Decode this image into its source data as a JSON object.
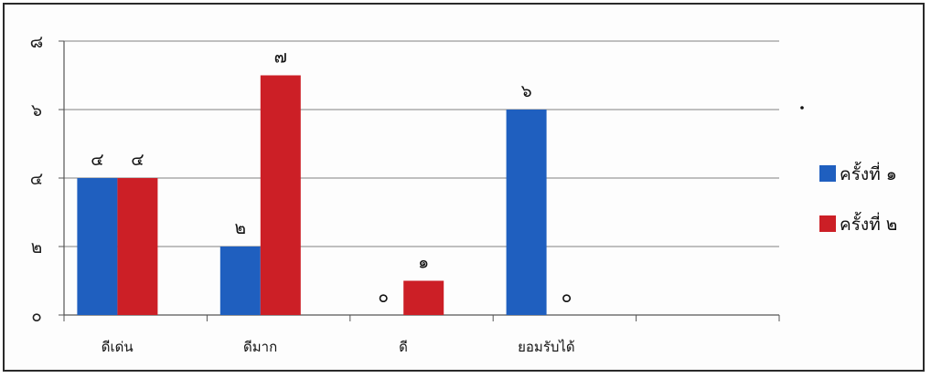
{
  "chart_data": {
    "type": "bar",
    "categories": [
      "ดีเด่น",
      "ดีมาก",
      "ดี",
      "ยอมรับได้",
      ""
    ],
    "series": [
      {
        "name": "ครั้งที่ ๑",
        "values": [
          4,
          2,
          0,
          6,
          null
        ],
        "color": "#1f5fbf"
      },
      {
        "name": "ครั้งที่ ๒",
        "values": [
          4,
          7,
          1,
          0,
          null
        ],
        "color": "#cc1f26"
      }
    ],
    "data_labels": [
      [
        "๔",
        "๒",
        "๐",
        "๖",
        ""
      ],
      [
        "๔",
        "๗",
        "๑",
        "๐",
        ""
      ]
    ],
    "y_ticks": [
      {
        "value": 0,
        "label": "๐"
      },
      {
        "value": 2,
        "label": "๒"
      },
      {
        "value": 4,
        "label": "๔"
      },
      {
        "value": 6,
        "label": "๖"
      },
      {
        "value": 8,
        "label": "๘"
      }
    ],
    "ylim": [
      0,
      8
    ],
    "grid": true,
    "legend_position": "right",
    "title": "",
    "xlabel": "",
    "ylabel": "",
    "gridline_color": "#9a9a9a",
    "axis_color": "#555555"
  }
}
